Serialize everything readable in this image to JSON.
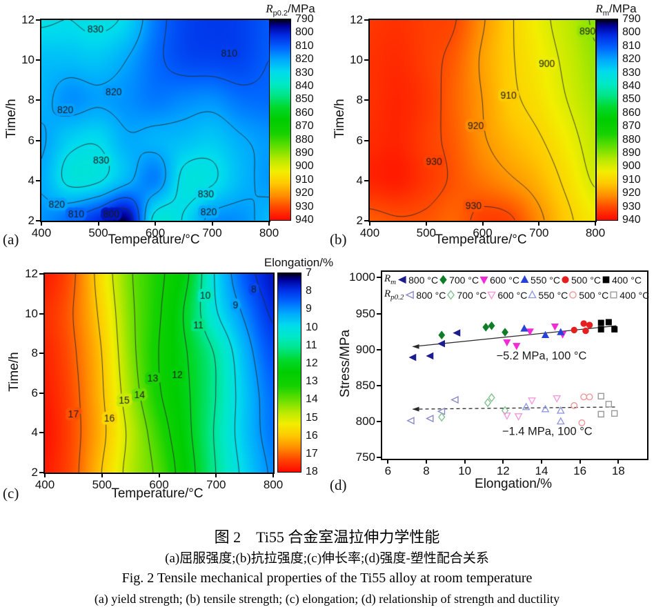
{
  "figure_title": "Ti55 alloy tensile properties figure",
  "colormap": {
    "stops": [
      [
        0.0,
        "#00000e"
      ],
      [
        0.03,
        "#000096"
      ],
      [
        0.08,
        "#002ce6"
      ],
      [
        0.14,
        "#0064ff"
      ],
      [
        0.2,
        "#00a8ff"
      ],
      [
        0.26,
        "#00dbee"
      ],
      [
        0.32,
        "#00e9c7"
      ],
      [
        0.38,
        "#00e587"
      ],
      [
        0.44,
        "#00d92a"
      ],
      [
        0.5,
        "#00cd00"
      ],
      [
        0.57,
        "#16d200"
      ],
      [
        0.64,
        "#69e000"
      ],
      [
        0.7,
        "#b9e900"
      ],
      [
        0.76,
        "#f3ee00"
      ],
      [
        0.82,
        "#ffc800"
      ],
      [
        0.88,
        "#ff8d00"
      ],
      [
        0.935,
        "#ff4a00"
      ],
      [
        1.0,
        "#ff0a00"
      ]
    ]
  },
  "chart_data": [
    {
      "id": "a",
      "type": "heatmap",
      "panel_label": "(a)",
      "xlabel": "Temperature/°C",
      "ylabel": "Time/h",
      "colorbar_title": {
        "base": "R",
        "sub": "p0.2",
        "unit": "/MPa"
      },
      "x_range": [
        400,
        800
      ],
      "y_range": [
        2,
        12
      ],
      "x_ticks": [
        400,
        500,
        600,
        700,
        800
      ],
      "y_ticks": [
        2,
        4,
        6,
        8,
        10,
        12
      ],
      "value_range": [
        790,
        940
      ],
      "colorbar_ticks": [
        790,
        800,
        810,
        820,
        830,
        840,
        850,
        860,
        870,
        880,
        890,
        900,
        910,
        920,
        930,
        940
      ],
      "grid": {
        "x_start": 400,
        "x_step": 50,
        "y_top": 12,
        "y_step": 2,
        "values": [
          [
            831,
            830,
            832,
            828,
            814,
            806,
            804,
            805,
            809
          ],
          [
            824,
            824,
            825,
            820,
            812,
            807,
            806,
            806,
            810
          ],
          [
            822,
            817,
            819,
            817,
            814,
            816,
            817,
            813,
            812
          ],
          [
            819,
            827,
            829,
            821,
            822,
            824,
            826,
            821,
            818
          ],
          [
            821,
            832,
            831,
            822,
            815,
            832,
            831,
            823,
            818
          ],
          [
            817,
            811,
            802,
            793,
            833,
            829.5,
            817.5,
            817,
            823
          ]
        ]
      },
      "contour_levels": [
        800,
        810,
        820,
        830
      ],
      "contour_labels": [
        {
          "text": "830",
          "x": 495,
          "y": 11.5
        },
        {
          "text": "810",
          "x": 730,
          "y": 10.3
        },
        {
          "text": "820",
          "x": 527,
          "y": 8.4
        },
        {
          "text": "820",
          "x": 442,
          "y": 7.5
        },
        {
          "text": "830",
          "x": 505,
          "y": 5.0
        },
        {
          "text": "830",
          "x": 689,
          "y": 3.3
        },
        {
          "text": "820",
          "x": 427,
          "y": 2.8
        },
        {
          "text": "810",
          "x": 461,
          "y": 2.3
        },
        {
          "text": "800",
          "x": 523,
          "y": 2.3
        },
        {
          "text": "820",
          "x": 694,
          "y": 2.4
        }
      ]
    },
    {
      "id": "b",
      "type": "heatmap",
      "panel_label": "(b)",
      "xlabel": "Temperature/°C",
      "ylabel": "Time/h",
      "colorbar_title": {
        "base": "R",
        "sub": "m",
        "unit": "/MPa"
      },
      "x_range": [
        400,
        800
      ],
      "y_range": [
        2,
        12
      ],
      "x_ticks": [
        400,
        500,
        600,
        700,
        800
      ],
      "y_ticks": [
        2,
        4,
        6,
        8,
        10,
        12
      ],
      "value_range": [
        790,
        940
      ],
      "colorbar_ticks": [
        790,
        800,
        810,
        820,
        830,
        840,
        850,
        860,
        870,
        880,
        890,
        900,
        910,
        920,
        930,
        940
      ],
      "grid": {
        "x_start": 400,
        "x_step": 50,
        "y_top": 12,
        "y_step": 2,
        "values": [
          [
            933,
            934,
            932,
            930.5,
            921,
            911,
            903,
            896,
            889
          ],
          [
            934,
            935,
            932,
            928,
            919,
            911,
            905,
            898,
            891
          ],
          [
            934,
            936,
            933,
            927,
            920,
            912,
            907,
            900,
            893
          ],
          [
            935,
            936,
            932,
            928,
            921,
            915.5,
            911,
            904,
            896
          ],
          [
            936,
            937,
            933,
            929,
            925,
            921,
            916,
            908,
            899
          ],
          [
            928,
            929.5,
            929,
            927,
            932,
            931,
            922,
            912,
            905
          ]
        ]
      },
      "contour_levels": [
        890,
        900,
        910,
        920,
        930
      ],
      "contour_labels": [
        {
          "text": "890",
          "x": 786,
          "y": 11.4
        },
        {
          "text": "900",
          "x": 714,
          "y": 9.8
        },
        {
          "text": "910",
          "x": 646,
          "y": 8.2
        },
        {
          "text": "920",
          "x": 588,
          "y": 6.7
        },
        {
          "text": "930",
          "x": 514,
          "y": 4.9
        },
        {
          "text": "930",
          "x": 584,
          "y": 2.7
        }
      ]
    },
    {
      "id": "c",
      "type": "heatmap",
      "panel_label": "(c)",
      "xlabel": "Temperature/°C",
      "ylabel": "Time/h",
      "colorbar_title": {
        "base": "",
        "sub": "",
        "unit": "Elongation/%"
      },
      "x_range": [
        400,
        800
      ],
      "y_range": [
        2,
        12
      ],
      "x_ticks": [
        400,
        500,
        600,
        700,
        800
      ],
      "y_ticks": [
        2,
        4,
        6,
        8,
        10,
        12
      ],
      "value_range": [
        7,
        18
      ],
      "colorbar_ticks": [
        7,
        8,
        9,
        10,
        11,
        12,
        13,
        14,
        15,
        16,
        17,
        18
      ],
      "grid": {
        "x_start": 400,
        "x_step": 50,
        "y_top": 12,
        "y_step": 2,
        "values": [
          [
            17.8,
            17.1,
            15.6,
            14.1,
            13.2,
            12.1,
            9.9,
            8.4,
            7.6
          ],
          [
            17.6,
            17.0,
            15.8,
            14.2,
            13.1,
            11.8,
            10.1,
            8.9,
            7.9
          ],
          [
            17.7,
            17.1,
            16.0,
            14.3,
            13.0,
            12.0,
            10.9,
            9.4,
            8.3
          ],
          [
            17.8,
            17.2,
            16.1,
            14.5,
            13.1,
            12.1,
            11.0,
            9.6,
            8.6
          ],
          [
            17.9,
            17.25,
            16.2,
            14.8,
            13.5,
            12.2,
            10.9,
            9.6,
            8.7
          ],
          [
            17.8,
            17.2,
            16.0,
            14.7,
            13.8,
            12.4,
            11.0,
            9.8,
            8.9
          ]
        ]
      },
      "contour_levels": [
        8,
        9,
        10,
        11,
        12,
        13,
        14,
        15,
        16,
        17
      ],
      "contour_labels": [
        {
          "text": "8",
          "x": 766,
          "y": 11.2
        },
        {
          "text": "9",
          "x": 734,
          "y": 10.4
        },
        {
          "text": "10",
          "x": 681,
          "y": 10.9
        },
        {
          "text": "11",
          "x": 669,
          "y": 9.4
        },
        {
          "text": "12",
          "x": 632,
          "y": 6.9
        },
        {
          "text": "13",
          "x": 589,
          "y": 6.7
        },
        {
          "text": "14",
          "x": 566,
          "y": 5.9
        },
        {
          "text": "15",
          "x": 539,
          "y": 5.6
        },
        {
          "text": "16",
          "x": 513,
          "y": 4.7
        },
        {
          "text": "17",
          "x": 450,
          "y": 4.9
        }
      ]
    },
    {
      "id": "d",
      "type": "scatter",
      "panel_label": "(d)",
      "xlabel": "Elongation/%",
      "ylabel": "Stress/MPa",
      "x_range": [
        5.7,
        19.5
      ],
      "y_range": [
        748,
        1008
      ],
      "x_ticks": [
        6,
        8,
        10,
        12,
        14,
        16,
        18
      ],
      "y_ticks": [
        750,
        800,
        850,
        900,
        950,
        1000
      ],
      "legend": {
        "row1_symbol": {
          "base": "R",
          "sub": "m"
        },
        "row2_symbol": {
          "base": "R",
          "sub": "p0.2"
        }
      },
      "series": [
        {
          "set": "Rm",
          "temp": "800 °C",
          "marker": "tri-left",
          "filled": true,
          "color": "#1c1c8f",
          "points": [
            [
              7.3,
              889
            ],
            [
              8.2,
              891
            ],
            [
              8.8,
              908
            ],
            [
              9.6,
              923
            ]
          ]
        },
        {
          "set": "Rm",
          "temp": "700 °C",
          "marker": "diamond",
          "filled": true,
          "color": "#0f7d28",
          "points": [
            [
              8.8,
              920
            ],
            [
              11.1,
              931
            ],
            [
              11.4,
              933
            ],
            [
              12.1,
              924
            ]
          ]
        },
        {
          "set": "Rm",
          "temp": "600 °C",
          "marker": "tri-down",
          "filled": true,
          "color": "#f32ad8",
          "points": [
            [
              12.2,
              910
            ],
            [
              12.7,
              905
            ],
            [
              13.4,
              925
            ],
            [
              14.7,
              932
            ],
            [
              15.1,
              921
            ]
          ]
        },
        {
          "set": "Rm",
          "temp": "550 °C",
          "marker": "tri-up",
          "filled": true,
          "color": "#2742d6",
          "points": [
            [
              13.1,
              929
            ],
            [
              14.2,
              920
            ],
            [
              15.0,
              924
            ]
          ]
        },
        {
          "set": "Rm",
          "temp": "500 °C",
          "marker": "circle",
          "filled": true,
          "color": "#e51f1f",
          "points": [
            [
              15.7,
              927
            ],
            [
              16.2,
              936
            ],
            [
              16.3,
              926
            ],
            [
              16.5,
              934
            ]
          ]
        },
        {
          "set": "Rm",
          "temp": "400 °C",
          "marker": "square",
          "filled": true,
          "color": "#000000",
          "points": [
            [
              17.1,
              937
            ],
            [
              17.5,
              938
            ],
            [
              17.1,
              928
            ],
            [
              17.8,
              928
            ]
          ]
        },
        {
          "set": "Rp02",
          "temp": "800 °C",
          "marker": "tri-left",
          "filled": false,
          "color": "#8888cc",
          "points": [
            [
              7.2,
              801
            ],
            [
              8.2,
              804
            ],
            [
              8.8,
              814
            ],
            [
              9.5,
              830
            ]
          ]
        },
        {
          "set": "Rp02",
          "temp": "700 °C",
          "marker": "diamond",
          "filled": false,
          "color": "#82c28f",
          "points": [
            [
              8.8,
              806
            ],
            [
              11.2,
              826
            ],
            [
              11.4,
              833
            ],
            [
              12.1,
              815
            ]
          ]
        },
        {
          "set": "Rp02",
          "temp": "600 °C",
          "marker": "tri-down",
          "filled": false,
          "color": "#f799dd",
          "points": [
            [
              12.2,
              808
            ],
            [
              12.8,
              807
            ],
            [
              13.5,
              829
            ],
            [
              14.8,
              832
            ]
          ]
        },
        {
          "set": "Rp02",
          "temp": "550 °C",
          "marker": "tri-up",
          "filled": false,
          "color": "#9099e0",
          "points": [
            [
              13.2,
              820
            ],
            [
              14.2,
              817
            ],
            [
              15.0,
              815
            ],
            [
              15.0,
              800
            ]
          ]
        },
        {
          "set": "Rp02",
          "temp": "500 °C",
          "marker": "circle",
          "filled": false,
          "color": "#f09898",
          "points": [
            [
              15.7,
              822
            ],
            [
              16.2,
              834
            ],
            [
              16.5,
              834
            ],
            [
              16.1,
              798
            ]
          ]
        },
        {
          "set": "Rp02",
          "temp": "400 °C",
          "marker": "square",
          "filled": false,
          "color": "#999999",
          "points": [
            [
              17.1,
              835
            ],
            [
              17.1,
              810
            ],
            [
              17.5,
              824
            ],
            [
              17.8,
              811
            ]
          ]
        }
      ],
      "trend_lines": [
        {
          "style": "solid",
          "from": [
            7.3,
            904
          ],
          "to": [
            17.9,
            933
          ],
          "label": "−5.2 MPa, 100 °C",
          "label_at": [
            14.0,
            886
          ]
        },
        {
          "style": "dashed",
          "from": [
            7.3,
            817
          ],
          "to": [
            17.9,
            820
          ],
          "label": "−1.4 MPa, 100 °C",
          "label_at": [
            14.3,
            781
          ]
        }
      ]
    }
  ],
  "caption": {
    "cn_title": "图 2　Ti55 合金室温拉伸力学性能",
    "cn_sub": "(a)屈服强度;(b)抗拉强度;(c)伸长率;(d)强度-塑性配合关系",
    "en_title": "Fig. 2   Tensile mechanical properties of the Ti55 alloy at room temperature",
    "en_sub": "(a) yield strength; (b) tensile strength; (c) elongation; (d) relationship of strength and ductility"
  }
}
